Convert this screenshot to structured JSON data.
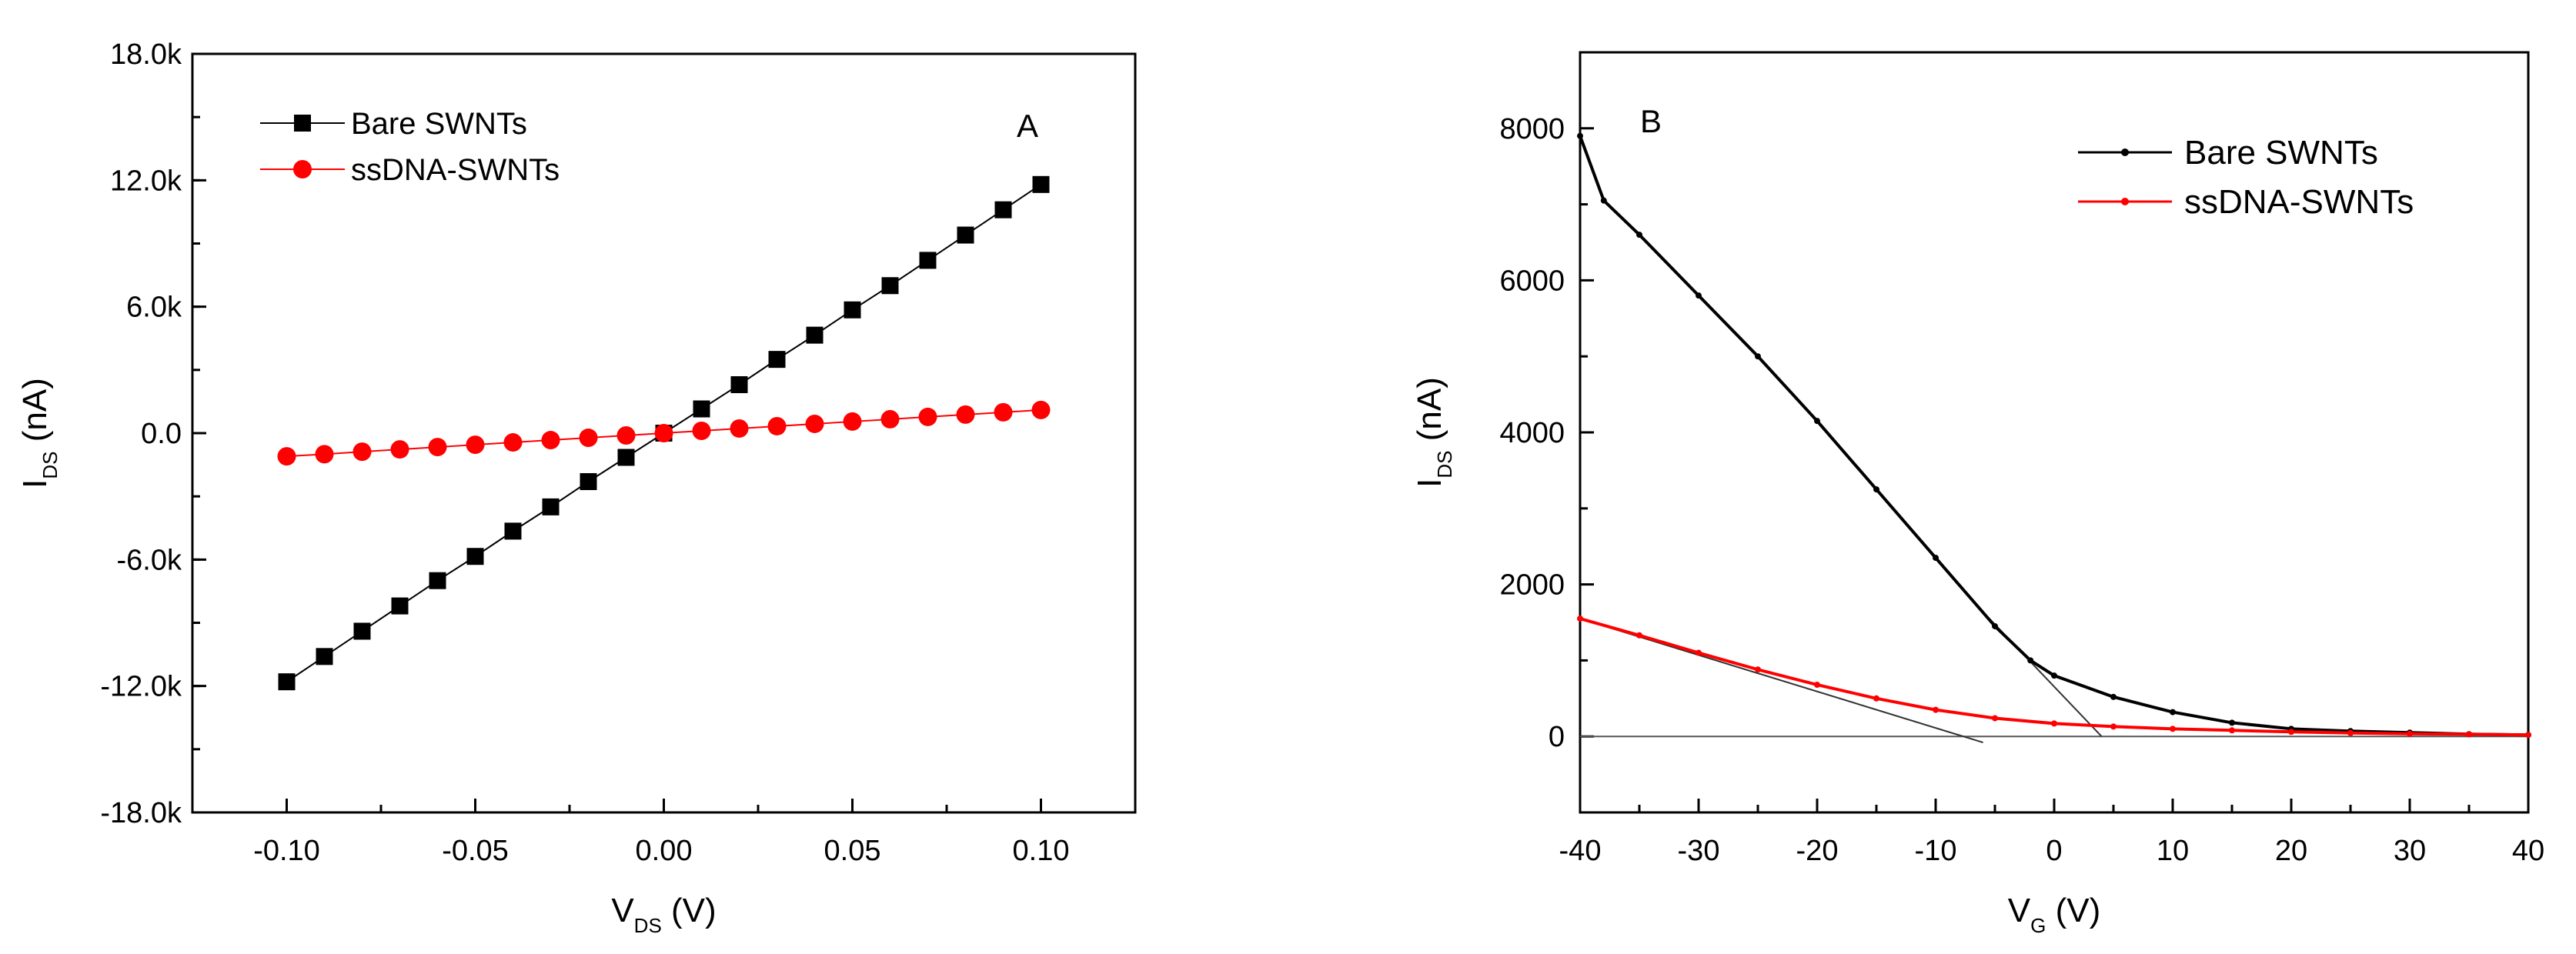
{
  "chart_data": [
    {
      "type": "scatter",
      "panel_label": "A",
      "title": "",
      "xlabel": {
        "main": "V",
        "sub": "DS",
        "unit": " (V)"
      },
      "ylabel": {
        "main": "I",
        "sub": "DS",
        "unit": " (nA)"
      },
      "xlim": [
        -0.125,
        0.125
      ],
      "ylim": [
        -18000,
        18000
      ],
      "xticks": [
        -0.1,
        -0.05,
        0.0,
        0.05,
        0.1
      ],
      "xtick_labels": [
        "-0.10",
        "-0.05",
        "0.00",
        "0.05",
        "0.10"
      ],
      "yticks": [
        -18000,
        -12000,
        -6000,
        0,
        6000,
        12000,
        18000
      ],
      "ytick_labels": [
        "-18.0k",
        "-12.0k",
        "-6.0k",
        "0.0",
        "6.0k",
        "12.0k",
        "18.0k"
      ],
      "legend_position": "top-left",
      "x": [
        -0.1,
        -0.09,
        -0.08,
        -0.07,
        -0.06,
        -0.05,
        -0.04,
        -0.03,
        -0.02,
        -0.01,
        0.0,
        0.01,
        0.02,
        0.03,
        0.04,
        0.05,
        0.06,
        0.07,
        0.08,
        0.09,
        0.1
      ],
      "series": [
        {
          "name": "Bare SWNTs",
          "color": "#000000",
          "marker": "square",
          "values": [
            -11800,
            -10600,
            -9400,
            -8200,
            -7000,
            -5850,
            -4650,
            -3500,
            -2300,
            -1150,
            0,
            1150,
            2300,
            3500,
            4650,
            5850,
            7000,
            8200,
            9400,
            10600,
            11800
          ]
        },
        {
          "name": "ssDNA-SWNTs",
          "color": "#ff0000",
          "marker": "circle",
          "values": [
            -1100,
            -1000,
            -880,
            -770,
            -660,
            -550,
            -440,
            -330,
            -220,
            -110,
            0,
            110,
            220,
            330,
            440,
            550,
            660,
            770,
            880,
            990,
            1100
          ]
        }
      ]
    },
    {
      "type": "line",
      "panel_label": "B",
      "title": "",
      "xlabel": {
        "main": "V",
        "sub": "G",
        "unit": " (V)"
      },
      "ylabel": {
        "main": "I",
        "sub": "DS",
        "unit": " (nA)"
      },
      "xlim": [
        -40,
        40
      ],
      "ylim": [
        -1000,
        9000
      ],
      "xticks": [
        -40,
        -30,
        -20,
        -10,
        0,
        10,
        20,
        30,
        40
      ],
      "xtick_labels": [
        "-40",
        "-30",
        "-20",
        "-10",
        "0",
        "10",
        "20",
        "30",
        "40"
      ],
      "yticks": [
        0,
        2000,
        4000,
        6000,
        8000
      ],
      "ytick_labels": [
        "0",
        "2000",
        "4000",
        "6000",
        "8000"
      ],
      "legend_position": "top-right",
      "series": [
        {
          "name": "Bare SWNTs",
          "color": "#000000",
          "marker": "dot",
          "x": [
            -40,
            -38,
            -35,
            -30,
            -25,
            -20,
            -15,
            -10,
            -5,
            -2,
            0,
            5,
            10,
            15,
            20,
            25,
            30,
            35,
            40
          ],
          "y": [
            7900,
            7050,
            6600,
            5800,
            5000,
            4150,
            3250,
            2350,
            1450,
            1000,
            800,
            520,
            320,
            180,
            100,
            70,
            50,
            30,
            20
          ]
        },
        {
          "name": "ssDNA-SWNTs",
          "color": "#ff0000",
          "marker": "dot",
          "x": [
            -40,
            -35,
            -30,
            -25,
            -20,
            -15,
            -10,
            -5,
            0,
            5,
            10,
            15,
            20,
            25,
            30,
            35,
            40
          ],
          "y": [
            1550,
            1330,
            1100,
            880,
            680,
            500,
            350,
            240,
            170,
            130,
            100,
            80,
            60,
            45,
            35,
            28,
            20
          ]
        }
      ],
      "annotations": [
        {
          "type": "baseline",
          "x": [
            -40,
            40
          ],
          "y": [
            0,
            0
          ]
        },
        {
          "type": "tangent",
          "of": "Bare SWNTs",
          "x": [
            -7,
            4
          ],
          "y": [
            1800,
            0
          ]
        },
        {
          "type": "tangent",
          "of": "ssDNA-SWNTs",
          "x": [
            -40,
            -6
          ],
          "y": [
            1550,
            -80
          ]
        }
      ]
    }
  ]
}
